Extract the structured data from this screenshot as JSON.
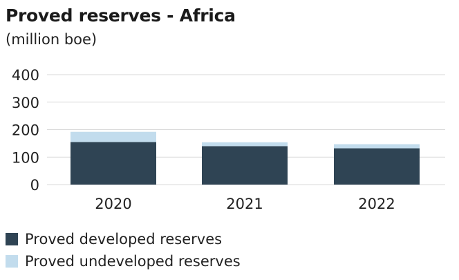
{
  "chart_data": {
    "type": "bar",
    "stacked": true,
    "title": "Proved reserves - Africa",
    "subtitle": "(million boe)",
    "categories": [
      "2020",
      "2021",
      "2022"
    ],
    "series": [
      {
        "name": "Proved developed reserves",
        "values": [
          155,
          140,
          132
        ],
        "color": "#2f4454"
      },
      {
        "name": "Proved undeveloped reserves",
        "values": [
          37,
          14,
          15
        ],
        "color": "#c2dced"
      }
    ],
    "y_ticks": [
      "0",
      "100",
      "200",
      "300",
      "400"
    ],
    "ylim": [
      0,
      400
    ],
    "grid": true,
    "legend_position": "bottom-left"
  }
}
